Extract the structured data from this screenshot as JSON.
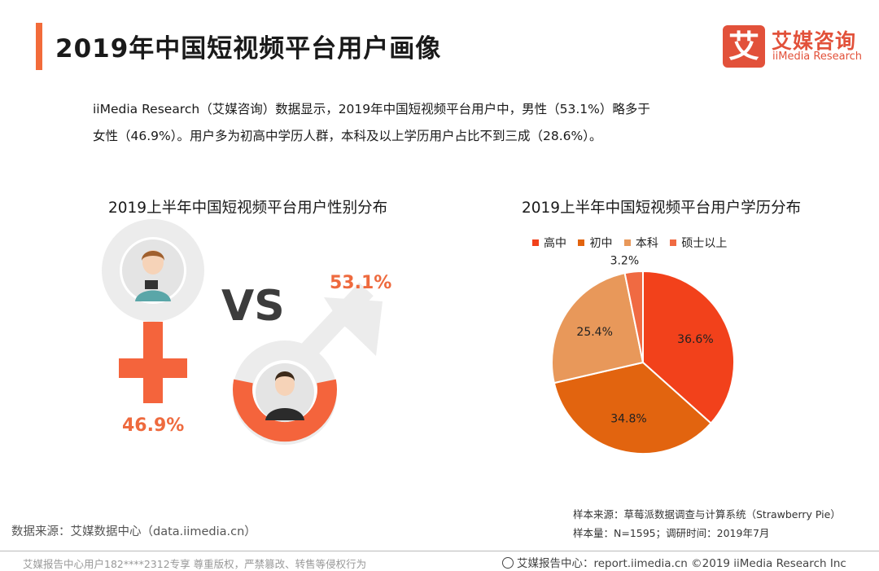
{
  "header": {
    "title": "2019年中国短视频平台用户画像",
    "logo_mark": "艾",
    "logo_cn": "艾媒咨询",
    "logo_en": "iiMedia Research"
  },
  "summary": {
    "line1": "iiMedia Research（艾媒咨询）数据显示，2019年中国短视频平台用户中，男性（53.1%）略多于",
    "line2": "女性（46.9%）。用户多为初高中学历人群，本科及以上学历用户占比不到三成（28.6%）。"
  },
  "gender_chart": {
    "title": "2019上半年中国短视频平台用户性别分布",
    "vs_label": "VS",
    "male_label": "53.1%",
    "female_label": "46.9%",
    "colors": {
      "accent": "#ee6a3e",
      "female": "#f4643c",
      "grey": "#ececec"
    }
  },
  "chart_data": [
    {
      "type": "pictograph",
      "title": "2019上半年中国短视频平台用户性别分布",
      "categories": [
        "男性",
        "女性"
      ],
      "values": [
        53.1,
        46.9
      ],
      "unit": "%"
    },
    {
      "type": "pie",
      "title": "2019上半年中国短视频平台用户学历分布",
      "legend_position": "top",
      "categories": [
        "高中",
        "初中",
        "本科",
        "硕士以上"
      ],
      "values": [
        36.6,
        34.8,
        25.4,
        3.2
      ],
      "labels": [
        "36.6%",
        "34.8%",
        "25.4%",
        "3.2%"
      ],
      "colors": [
        "#f2411b",
        "#e2640f",
        "#e8985a",
        "#f06a42"
      ],
      "unit": "%"
    }
  ],
  "sources": {
    "left": "数据来源：艾媒数据中心（data.iimedia.cn）",
    "sample_source": "样本来源：草莓派数据调查与计算系统（Strawberry  Pie）",
    "sample_size": "样本量：N=1595；调研时间：2019年7月"
  },
  "footer": {
    "left": "艾媒报告中心用户182****2312专享 尊重版权，严禁篡改、转售等侵权行为",
    "right": "艾媒报告中心：report.iimedia.cn  ©2019  iiMedia Research  Inc"
  }
}
